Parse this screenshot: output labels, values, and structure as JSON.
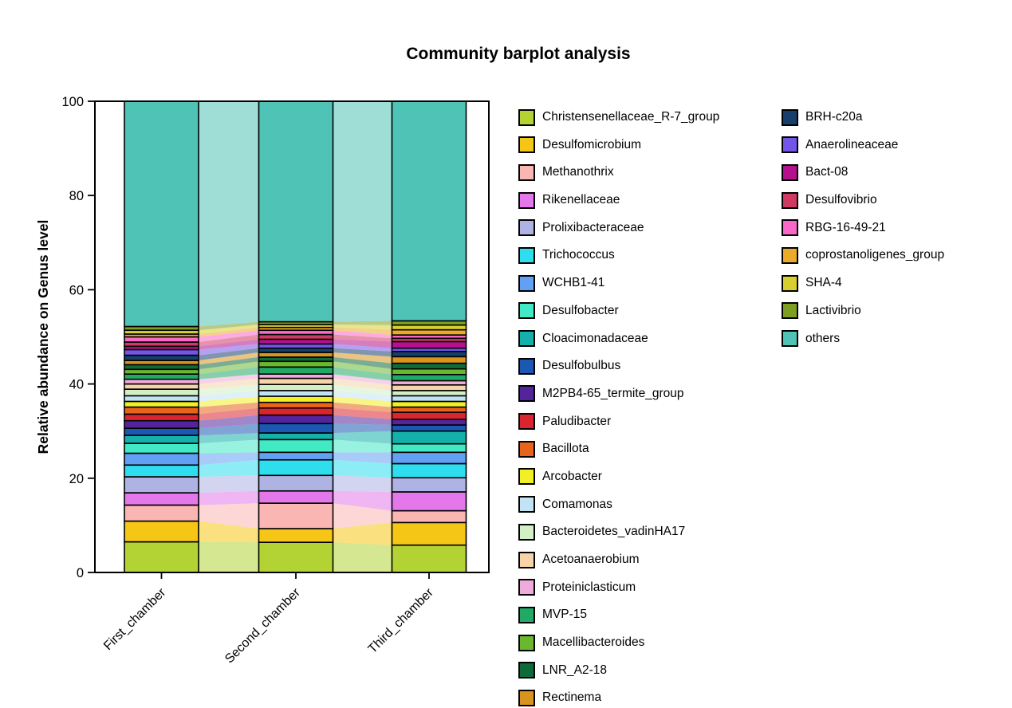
{
  "title": "Community barplot analysis",
  "chart_data": {
    "type": "bar",
    "subtype": "stacked-percentage-bars-with-flow-ribbons",
    "categories": [
      "First_chamber",
      "Second_chamber",
      "Third_chamber"
    ],
    "ylabel": "Relative abundance on Genus level",
    "ylim": [
      0,
      100
    ],
    "y_ticks": [
      0,
      20,
      40,
      60,
      80,
      100
    ],
    "grid": "off",
    "legend_position": "right-two-columns",
    "legend_columns": [
      22,
      9
    ],
    "stack_order": "bottom-to-top",
    "series": [
      {
        "name": "Christensenellaceae_R-7_group",
        "color": "#b3d335",
        "values": [
          6.5,
          6.4,
          5.8
        ]
      },
      {
        "name": "Desulfomicrobium",
        "color": "#f5c616",
        "values": [
          4.4,
          2.9,
          4.8
        ]
      },
      {
        "name": "Methanothrix",
        "color": "#f9b6b2",
        "values": [
          3.4,
          5.4,
          2.5
        ]
      },
      {
        "name": "Rikenellaceae",
        "color": "#e478ea",
        "values": [
          2.6,
          2.6,
          4.0
        ]
      },
      {
        "name": "Prolixibacteraceae",
        "color": "#aeb3e3",
        "values": [
          3.4,
          3.3,
          3.0
        ]
      },
      {
        "name": "Trichococcus",
        "color": "#2fdeee",
        "values": [
          2.5,
          3.3,
          3.0
        ]
      },
      {
        "name": "WCHB1-41",
        "color": "#62a0f3",
        "values": [
          2.5,
          1.6,
          2.4
        ]
      },
      {
        "name": "Desulfobacter",
        "color": "#41e9c4",
        "values": [
          2.1,
          2.7,
          1.8
        ]
      },
      {
        "name": "Cloacimonadaceae",
        "color": "#14b1aa",
        "values": [
          1.7,
          1.4,
          2.7
        ]
      },
      {
        "name": "Desulfobulbus",
        "color": "#1b58b2",
        "values": [
          1.5,
          2.0,
          1.3
        ]
      },
      {
        "name": "M2PB4-65_termite_group",
        "color": "#53249b",
        "values": [
          1.6,
          1.8,
          1.2
        ]
      },
      {
        "name": "Paludibacter",
        "color": "#da242f",
        "values": [
          1.4,
          1.5,
          1.5
        ]
      },
      {
        "name": "Bacillota",
        "color": "#e8631c",
        "values": [
          1.5,
          1.2,
          1.1
        ]
      },
      {
        "name": "Arcobacter",
        "color": "#f2ef25",
        "values": [
          1.2,
          1.3,
          1.2
        ]
      },
      {
        "name": "Comamonas",
        "color": "#c2e3f4",
        "values": [
          1.2,
          1.2,
          1.2
        ]
      },
      {
        "name": "Bacteroidetes_vadinHA17",
        "color": "#d3f0c4",
        "values": [
          1.4,
          1.3,
          1.1
        ]
      },
      {
        "name": "Acetoanaerobium",
        "color": "#f6d3a9",
        "values": [
          1.1,
          1.3,
          1.2
        ]
      },
      {
        "name": "Proteiniclasticum",
        "color": "#efabd9",
        "values": [
          1.0,
          0.9,
          0.9
        ]
      },
      {
        "name": "MVP-15",
        "color": "#21aa66",
        "values": [
          1.1,
          1.5,
          1.3
        ]
      },
      {
        "name": "Macellibacteroides",
        "color": "#6ab82f",
        "values": [
          1.0,
          1.2,
          1.2
        ]
      },
      {
        "name": "LNR_A2-18",
        "color": "#0f6a3a",
        "values": [
          1.0,
          0.9,
          1.2
        ]
      },
      {
        "name": "Rectinema",
        "color": "#d8941d",
        "values": [
          0.9,
          1.0,
          1.4
        ]
      },
      {
        "name": "BRH-c20a",
        "color": "#173f6c",
        "values": [
          1.1,
          0.9,
          1.1
        ]
      },
      {
        "name": "Anaerolineaceae",
        "color": "#7455e8",
        "values": [
          1.2,
          0.9,
          0.7
        ]
      },
      {
        "name": "Bact-08",
        "color": "#b5108e",
        "values": [
          0.7,
          1.0,
          1.4
        ]
      },
      {
        "name": "Desulfovibrio",
        "color": "#cf3a62",
        "values": [
          0.9,
          1.0,
          0.7
        ]
      },
      {
        "name": "RBG-16-49-21",
        "color": "#f967c9",
        "values": [
          1.1,
          0.9,
          0.7
        ]
      },
      {
        "name": "coprostanoligenes_group",
        "color": "#ebaa29",
        "values": [
          0.6,
          0.6,
          1.1
        ]
      },
      {
        "name": "SHA-4",
        "color": "#d7cf30",
        "values": [
          0.8,
          0.6,
          1.0
        ]
      },
      {
        "name": "Lactivibrio",
        "color": "#7e9e21",
        "values": [
          0.8,
          0.6,
          0.9
        ]
      },
      {
        "name": "others",
        "color": "#4fc3b5",
        "values": [
          47.8,
          46.8,
          46.6
        ]
      }
    ]
  }
}
